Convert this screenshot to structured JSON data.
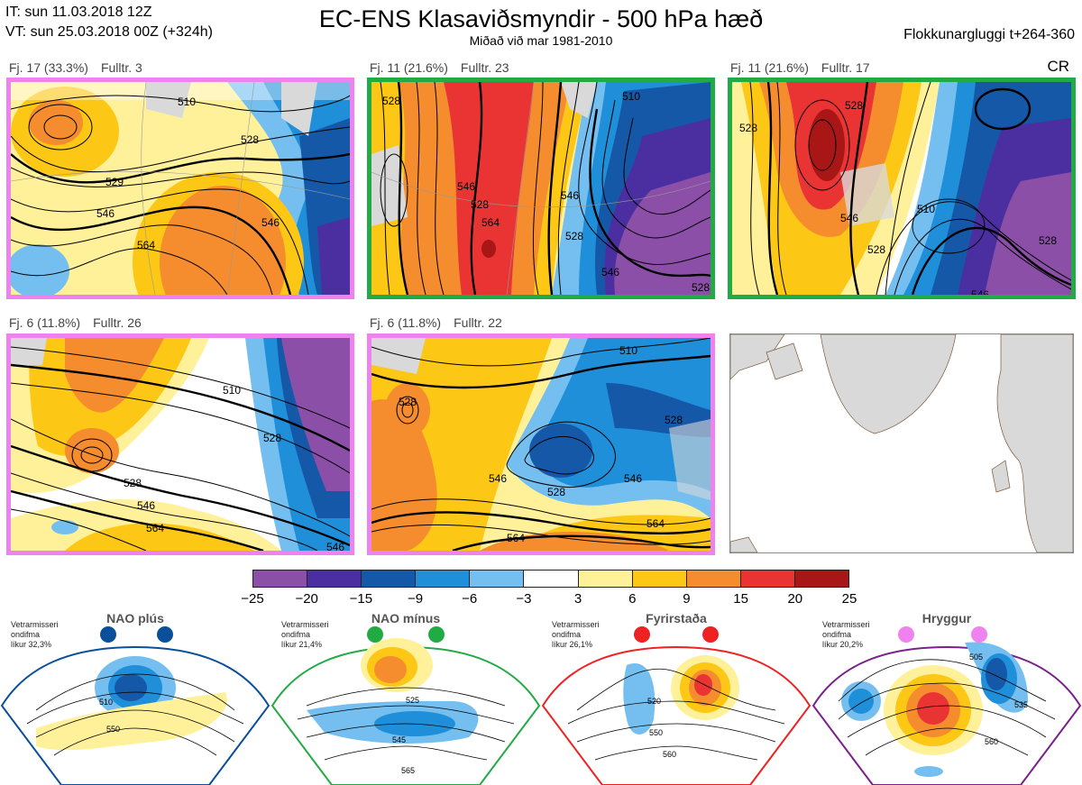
{
  "header": {
    "it": "IT: sun 11.03.2018 12Z",
    "vt": "VT: sun 25.03.2018 00Z  (+324h)",
    "title": "EC-ENS Klasaviðsmyndir - 500 hPa hæð",
    "subtitle": "Miðað við mar 1981-2010",
    "window": "Flokkunargluggi t+264-360",
    "cr": "CR"
  },
  "colors": {
    "pink": "#ee82ee",
    "green": "#22aa44",
    "red": "#ee2222",
    "purple": "#7a1f8c",
    "blue": "#0a4f9a",
    "land": "#d9d9d9",
    "coast": "#7a5a3a"
  },
  "panels": [
    {
      "cluster": "Fj. 17 (33.3%)",
      "members": "Fulltr. 3",
      "border": "pink",
      "contours": [
        "510",
        "528",
        "529",
        "546",
        "564",
        "546"
      ]
    },
    {
      "cluster": "Fj. 11 (21.6%)",
      "members": "Fulltr. 23",
      "border": "green",
      "contours": [
        "528",
        "510",
        "546",
        "528",
        "546",
        "564",
        "528",
        "546",
        "528"
      ]
    },
    {
      "cluster": "Fj. 11 (21.6%)",
      "members": "Fulltr. 17",
      "border": "green",
      "contours": [
        "528",
        "528",
        "546",
        "510",
        "528",
        "528",
        "546"
      ]
    },
    {
      "cluster": "Fj. 6 (11.8%)",
      "members": "Fulltr. 26",
      "border": "pink",
      "contours": [
        "510",
        "528",
        "528",
        "546",
        "564",
        "546"
      ]
    },
    {
      "cluster": "Fj. 6 (11.8%)",
      "members": "Fulltr. 22",
      "border": "pink",
      "contours": [
        "510",
        "528",
        "528",
        "546",
        "528",
        "546",
        "564",
        "564"
      ]
    },
    {
      "cluster": "",
      "members": "",
      "border": "none",
      "contours": []
    }
  ],
  "colorbar": {
    "ticks": [
      "−25",
      "−20",
      "−15",
      "−9",
      "−6",
      "−3",
      "3",
      "6",
      "9",
      "15",
      "20",
      "25"
    ],
    "colors": [
      "#8c4fa8",
      "#4b2fa0",
      "#1558a8",
      "#1e8fd8",
      "#74bff0",
      "#ffffff",
      "#fff19a",
      "#fcc715",
      "#f58c2e",
      "#ea3434",
      "#a81616"
    ]
  },
  "regimes": [
    {
      "title": "NAO plús",
      "note": [
        "Vetrarmisseri",
        "ondifma",
        "líkur 32,3%"
      ],
      "color": "blue",
      "dots": "blue",
      "contours": [
        "510",
        "550"
      ]
    },
    {
      "title": "NAO mínus",
      "note": [
        "Vetrarmisseri",
        "ondifma",
        "líkur 21,4%"
      ],
      "color": "green",
      "dots": "green",
      "contours": [
        "525",
        "545",
        "565"
      ]
    },
    {
      "title": "Fyrirstaða",
      "note": [
        "Vetrarmisseri",
        "ondifma",
        "líkur 26,1%"
      ],
      "color": "red",
      "dots": "red",
      "contours": [
        "520",
        "550",
        "560"
      ]
    },
    {
      "title": "Hryggur",
      "note": [
        "Vetrarmisseri",
        "ondifma",
        "líkur 20,2%"
      ],
      "color": "purple",
      "dots": "pink",
      "contours": [
        "505",
        "535",
        "560"
      ]
    }
  ]
}
